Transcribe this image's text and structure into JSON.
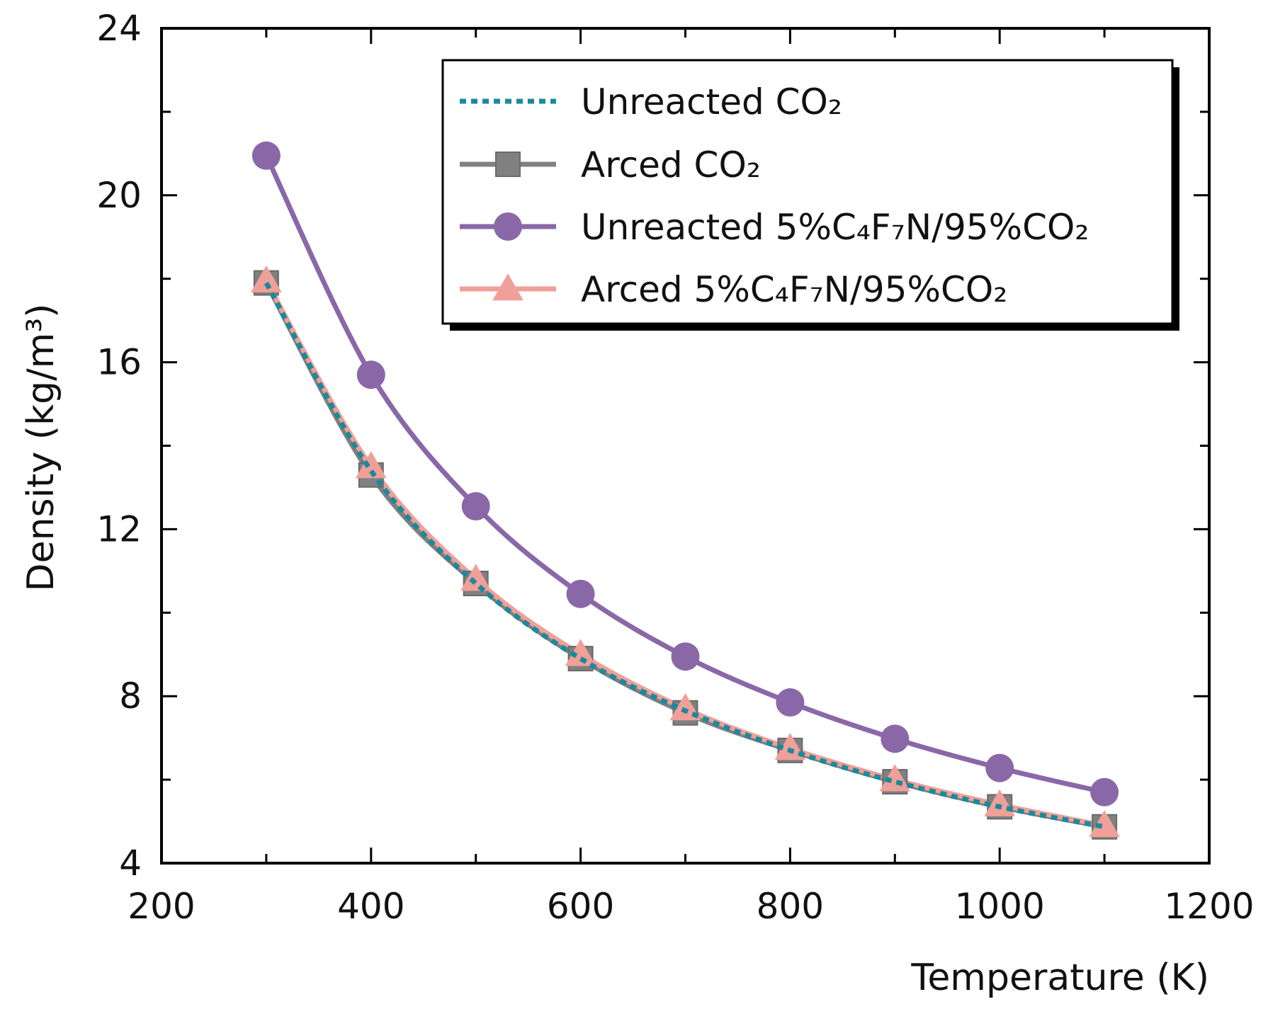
{
  "chart_data": {
    "type": "line",
    "title": "",
    "xlabel": "Temperature (K)",
    "ylabel": "Density (kg/m³)",
    "xlim": [
      200,
      1200
    ],
    "ylim": [
      4,
      24
    ],
    "xticks": [
      200,
      400,
      600,
      800,
      1000,
      1200
    ],
    "yticks": [
      4,
      8,
      12,
      16,
      20,
      24
    ],
    "xtick_labels": [
      "200",
      "400",
      "600",
      "800",
      "1000",
      "1200"
    ],
    "ytick_labels": [
      "4",
      "8",
      "12",
      "16",
      "20",
      "24"
    ],
    "legend_position": "top-right",
    "series": [
      {
        "name": "Unreacted CO₂",
        "legend_label": "Unreacted CO₂",
        "style": "dotted",
        "marker": "none",
        "color": "#1a8a9c",
        "x": [
          300,
          400,
          500,
          600,
          700,
          800,
          900,
          1000,
          1100
        ],
        "y": [
          17.9,
          13.4,
          10.7,
          8.9,
          7.65,
          6.7,
          5.95,
          5.35,
          4.87
        ]
      },
      {
        "name": "Arced CO₂",
        "legend_label": "Arced CO₂",
        "style": "solid",
        "marker": "square",
        "color": "#808080",
        "x": [
          300,
          400,
          500,
          600,
          700,
          800,
          900,
          1000,
          1100
        ],
        "y": [
          17.9,
          13.3,
          10.7,
          8.9,
          7.6,
          6.7,
          5.95,
          5.35,
          4.87
        ]
      },
      {
        "name": "Unreacted 5%C₄F₇N/95%CO₂",
        "legend_label": "Unreacted 5%C₄F₇N/95%CO₂",
        "style": "solid",
        "marker": "circle",
        "color": "#8a68a8",
        "x": [
          300,
          400,
          500,
          600,
          700,
          800,
          900,
          1000,
          1100
        ],
        "y": [
          20.95,
          15.7,
          12.55,
          10.45,
          8.95,
          7.85,
          6.98,
          6.28,
          5.7
        ]
      },
      {
        "name": "Arced 5%C₄F₇N/95%CO₂",
        "legend_label": "Arced 5%C₄F₇N/95%CO₂",
        "style": "solid",
        "marker": "triangle",
        "color": "#f0a098",
        "x": [
          300,
          400,
          500,
          600,
          700,
          800,
          900,
          1000,
          1100
        ],
        "y": [
          17.95,
          13.5,
          10.8,
          9.0,
          7.7,
          6.75,
          6.0,
          5.4,
          4.9
        ]
      }
    ]
  }
}
